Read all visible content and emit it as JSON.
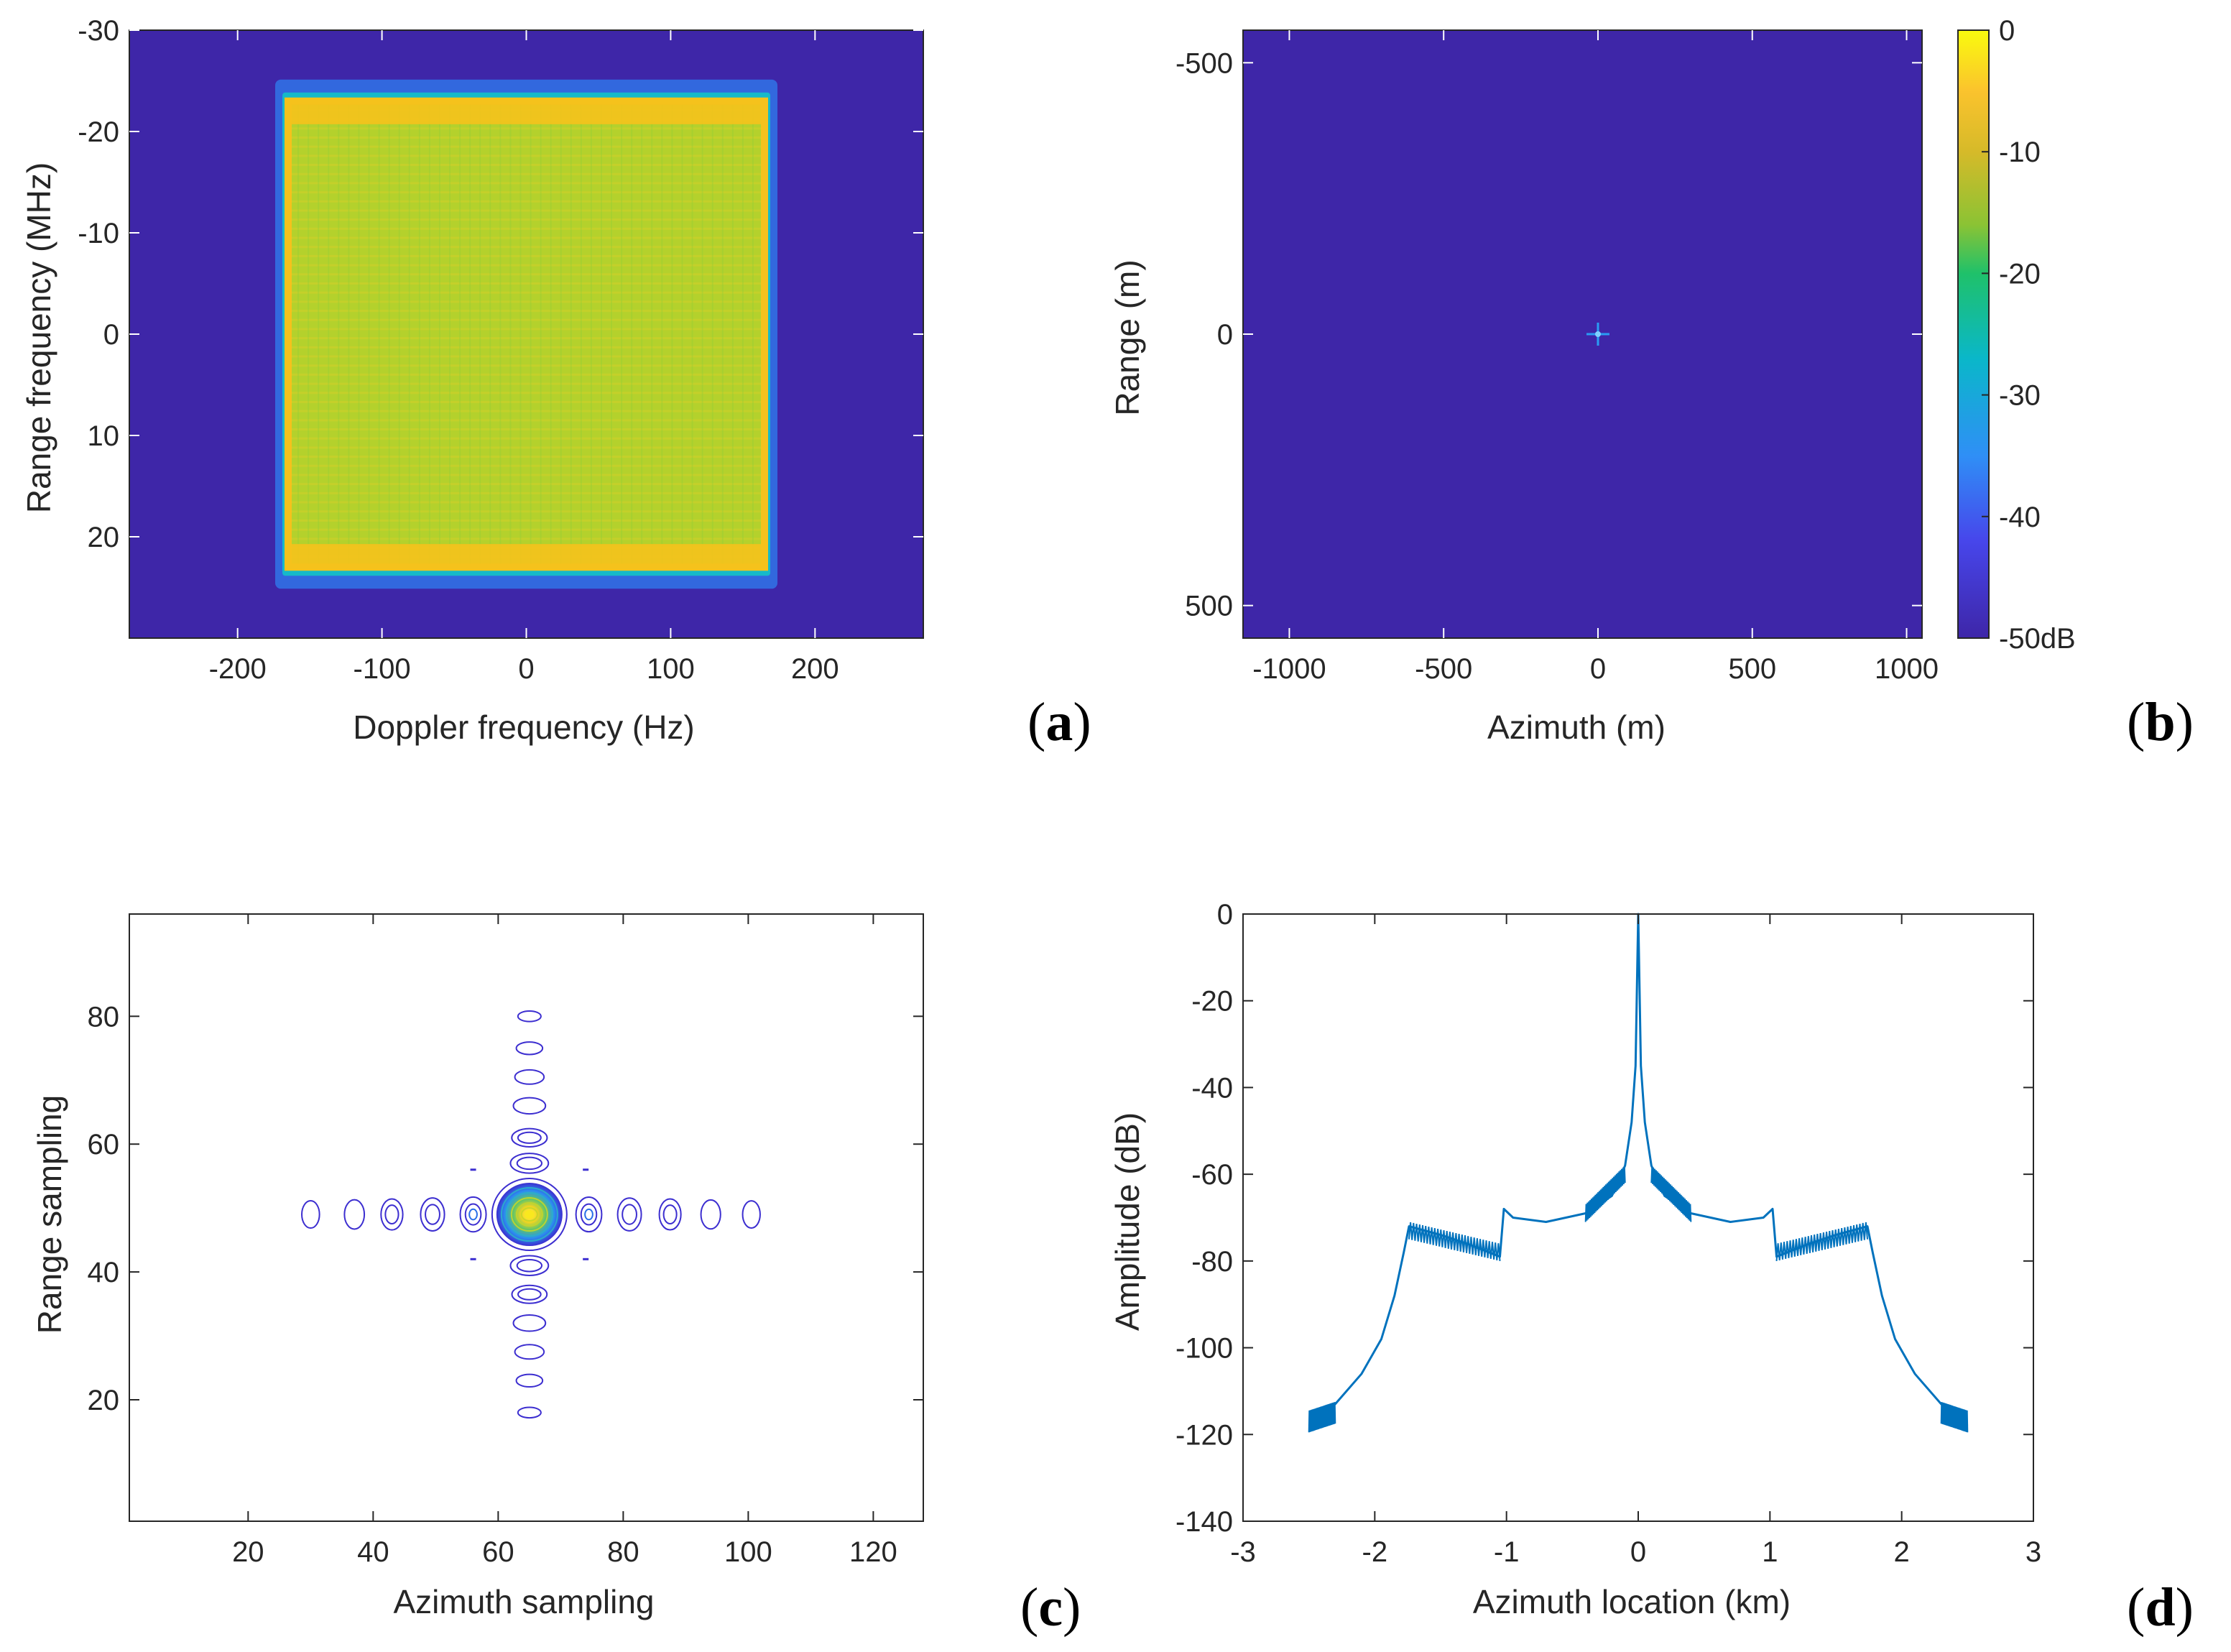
{
  "chart_data": [
    {
      "panel": "a",
      "type": "heatmap",
      "panel_label": "a",
      "xlabel": "Doppler frequency (Hz)",
      "ylabel": "Range frequency (MHz)",
      "xlim": [
        -275,
        275
      ],
      "ylim": [
        -30,
        30
      ],
      "y_reversed": true,
      "xticks": [
        "-200",
        "-100",
        "0",
        "100",
        "200"
      ],
      "yticks": [
        "-30",
        "-20",
        "-10",
        "0",
        "10",
        "20"
      ],
      "signal_region": {
        "doppler": [
          -165,
          165
        ],
        "range_freq": [
          -23,
          23
        ]
      },
      "edge_bands_range_freq": [
        -23,
        -21,
        21,
        23
      ],
      "colors": {
        "background": "#3e26a8",
        "signal": "#b4d12c",
        "edge": "#f5c21c",
        "stripe": "#4ec46a"
      }
    },
    {
      "panel": "b",
      "type": "heatmap",
      "panel_label": "b",
      "xlabel": "Azimuth (m)",
      "ylabel": "Range (m)",
      "xlim": [
        -1150,
        1050
      ],
      "ylim": [
        -560,
        560
      ],
      "y_reversed": true,
      "xticks": [
        "-1000",
        "-500",
        "0",
        "500",
        "1000"
      ],
      "yticks": [
        "-500",
        "0",
        "500"
      ],
      "point_target": {
        "azimuth": 0,
        "range": 0
      },
      "colorbar": {
        "ticks": [
          "0",
          "-10",
          "-20",
          "-30",
          "-40",
          "-50dB"
        ],
        "range_db": [
          -50,
          0
        ]
      },
      "colors": {
        "background": "#3e26a8",
        "target": "#2a9df4"
      }
    },
    {
      "panel": "c",
      "type": "contour",
      "panel_label": "c",
      "xlabel": "Azimuth sampling",
      "ylabel": "Range sampling",
      "xlim": [
        1,
        128
      ],
      "ylim": [
        1,
        96
      ],
      "xticks": [
        "20",
        "40",
        "60",
        "80",
        "100",
        "120"
      ],
      "yticks": [
        "20",
        "40",
        "60",
        "80"
      ],
      "center": [
        65,
        49
      ],
      "azimuth_sidelobes_x": [
        30,
        37,
        43,
        49.5,
        56,
        74.5,
        81,
        87.5,
        94,
        100.5
      ],
      "range_sidelobes_y": [
        18,
        23,
        27.5,
        32,
        36.5,
        41,
        57,
        61,
        66,
        70.5,
        75,
        80
      ],
      "colors": {
        "contour": "#3c2ed0",
        "peak": "#f9e81f"
      }
    },
    {
      "panel": "d",
      "type": "line",
      "panel_label": "d",
      "xlabel": "Azimuth location (km)",
      "ylabel": "Amplitude (dB)",
      "xlim": [
        -3,
        3
      ],
      "ylim": [
        -140,
        0
      ],
      "xticks": [
        "-3",
        "-2",
        "-1",
        "0",
        "1",
        "2",
        "3"
      ],
      "yticks": [
        "0",
        "-20",
        "-40",
        "-60",
        "-80",
        "-100",
        "-120",
        "-140"
      ],
      "series": [
        {
          "x": [
            -2.5,
            -2.3,
            -2.1,
            -1.95,
            -1.85,
            -1.78,
            -1.74,
            -1.5,
            -1.3,
            -1.05,
            -1.02,
            -0.95,
            -0.7,
            -0.4,
            -0.2,
            -0.1,
            -0.05,
            -0.02,
            0,
            0.02,
            0.05,
            0.1,
            0.2,
            0.4,
            0.7,
            0.95,
            1.02,
            1.05,
            1.3,
            1.5,
            1.74,
            1.78,
            1.85,
            1.95,
            2.1,
            2.3,
            2.5
          ],
          "y": [
            -118,
            -113,
            -106,
            -98,
            -88,
            -78,
            -72,
            -74,
            -76,
            -79,
            -68,
            -70,
            -71,
            -69,
            -65,
            -58,
            -48,
            -35,
            0,
            -35,
            -48,
            -58,
            -65,
            -69,
            -71,
            -70,
            -68,
            -79,
            -76,
            -74,
            -72,
            -78,
            -88,
            -98,
            -106,
            -113,
            -118
          ]
        }
      ],
      "colors": {
        "line": "#0072bd"
      }
    }
  ]
}
